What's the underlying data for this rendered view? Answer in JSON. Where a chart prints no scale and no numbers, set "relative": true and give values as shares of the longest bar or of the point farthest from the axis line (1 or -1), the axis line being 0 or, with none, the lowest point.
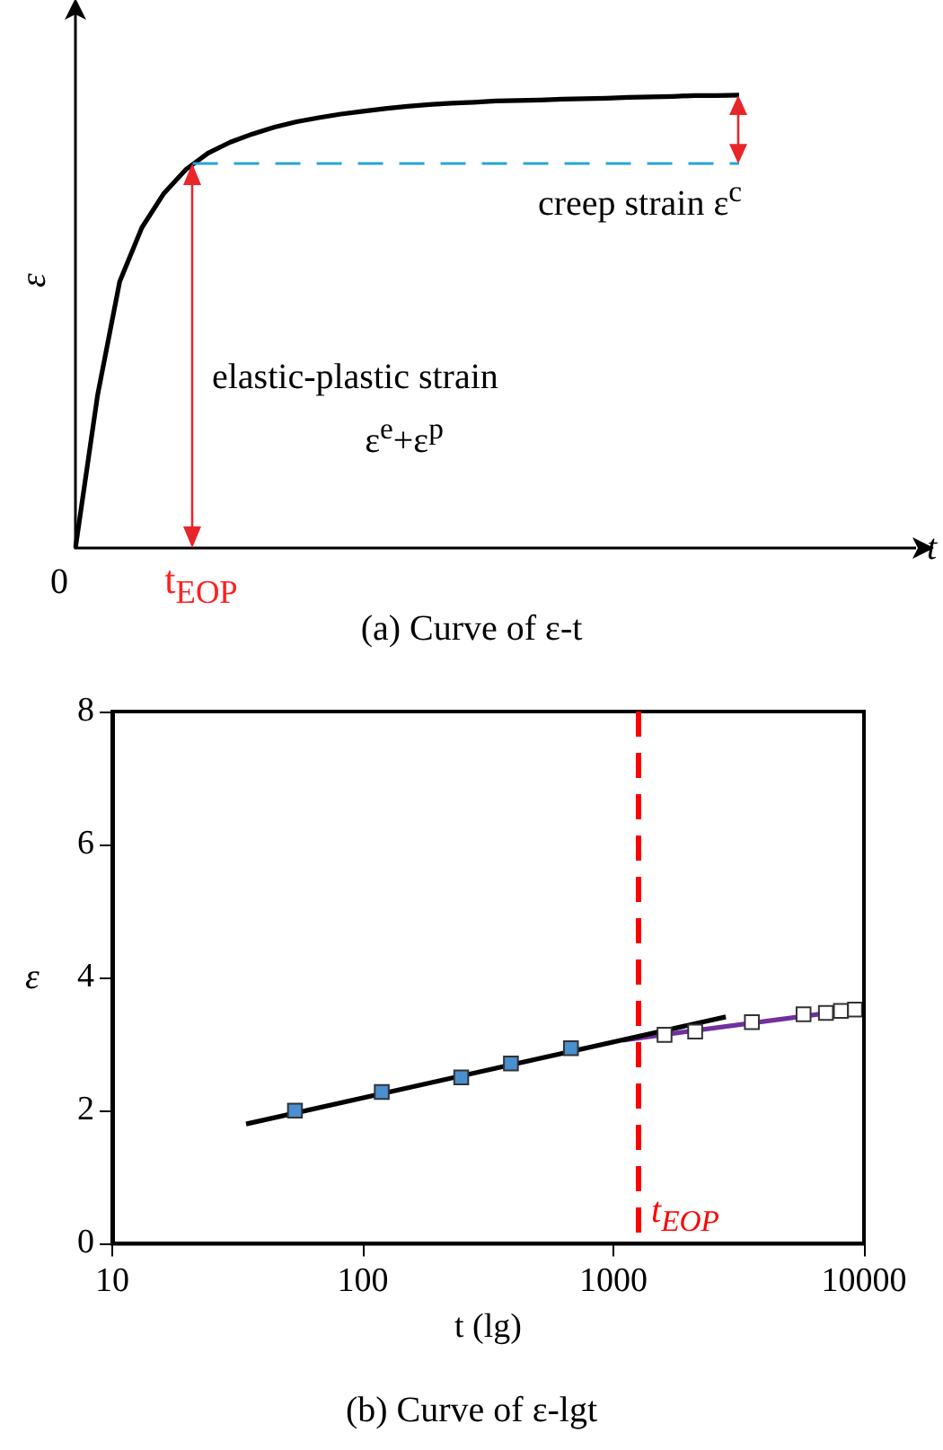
{
  "chart_data": [
    {
      "type": "line",
      "title": "(a) Curve of ε-t",
      "xlabel": "t",
      "ylabel": "ε",
      "relative": true,
      "marker": "none",
      "line_style": "solid",
      "legend": false,
      "categories": [
        null,
        null,
        null,
        null,
        null,
        null,
        null,
        null,
        null,
        null,
        null,
        null,
        null,
        null,
        null,
        null,
        null,
        null,
        null,
        null,
        null,
        null,
        null,
        null,
        null,
        null,
        null,
        null,
        null,
        null,
        null,
        null,
        null,
        null,
        null,
        null,
        null,
        null,
        null
      ],
      "series": [
        {
          "color": "#000000",
          "values": [
            0,
            0.337,
            0.588,
            0.707,
            0.783,
            0.836,
            0.872,
            0.896,
            0.914,
            0.929,
            0.941,
            0.95,
            0.958,
            0.964,
            0.97,
            0.975,
            0.979,
            0.982,
            0.984,
            0.987,
            0.988,
            0.989,
            0.991,
            0.992,
            0.993,
            0.995,
            0.996,
            0.997,
            0.999,
            0.999,
            1,
            null,
            null,
            null,
            null,
            null,
            null,
            null,
            null
          ]
        }
      ],
      "ref_lines": [
        {
          "axis": "y",
          "value": 0.849,
          "color": "#29a3dc",
          "line_style": "dashed"
        }
      ],
      "annotations": [
        "0",
        "creep strain ε$^{c}$",
        "elastic-plastic strain",
        "ε$^{e}$+ε$^{p}$",
        "t$_{EOP}$"
      ]
    },
    {
      "type": "scatter",
      "title": "(b) Curve of ε-lgt",
      "xlabel": "t (lg)",
      "ylabel": "ε",
      "log": "x",
      "grid": false,
      "legend": false,
      "marker": "square",
      "xlim": [
        10,
        10000
      ],
      "xticks": [
        10,
        100,
        1000,
        10000
      ],
      "ylim": [
        0,
        8
      ],
      "yticks": [
        0,
        2,
        4,
        6,
        8
      ],
      "series": [
        {
          "type": "line",
          "marker": "none",
          "color": "#000000",
          "x": [
            34.2,
            2810
          ],
          "values": [
            1.8,
            3.41
          ]
        },
        {
          "type": "line",
          "marker": "none",
          "color": "#7030a0",
          "x": [
            1090,
            10000
          ],
          "values": [
            3.06,
            3.54
          ]
        },
        {
          "color": "#4a8fd0",
          "x": [
            53.6,
            119,
            247,
            390,
            677
          ],
          "values": [
            2.0,
            2.28,
            2.5,
            2.71,
            2.94
          ]
        },
        {
          "color": "#ffffff",
          "x": [
            1600,
            2120,
            3570,
            5740,
            7050,
            8090,
            9210
          ],
          "values": [
            3.14,
            3.19,
            3.33,
            3.45,
            3.47,
            3.5,
            3.52
          ]
        }
      ],
      "ref_lines": [
        {
          "axis": "x",
          "value": 1260,
          "label": "t$_{EOP}$",
          "color": "#ff0000",
          "line_style": "dashed"
        }
      ]
    }
  ]
}
